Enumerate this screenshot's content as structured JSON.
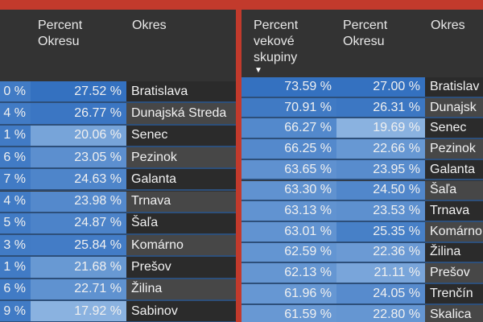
{
  "left_table": {
    "headers": {
      "col2": "Percent Okresu",
      "col3": "Okres"
    },
    "rows": [
      {
        "c1": "0 %",
        "c2": "27.52 %",
        "okres": "Bratislava"
      },
      {
        "c1": "4 %",
        "c2": "26.77 %",
        "okres": "Dunajská Streda"
      },
      {
        "c1": "1 %",
        "c2": "20.06 %",
        "okres": "Senec"
      },
      {
        "c1": "6 %",
        "c2": "23.05 %",
        "okres": "Pezinok"
      },
      {
        "c1": "7 %",
        "c2": "24.63 %",
        "okres": "Galanta"
      },
      {
        "c1": "4 %",
        "c2": "23.98 %",
        "okres": "Trnava"
      },
      {
        "c1": "5 %",
        "c2": "24.87 %",
        "okres": "Šaľa"
      },
      {
        "c1": "3 %",
        "c2": "25.84 %",
        "okres": "Komárno"
      },
      {
        "c1": "1 %",
        "c2": "21.68 %",
        "okres": "Prešov"
      },
      {
        "c1": "6 %",
        "c2": "22.71 %",
        "okres": "Žilina"
      },
      {
        "c1": "9 %",
        "c2": "17.92 %",
        "okres": "Sabinov"
      }
    ]
  },
  "right_table": {
    "headers": {
      "col1": "Percent vekové skupiny",
      "col2": "Percent Okresu",
      "col3": "Okres"
    },
    "sort_icon": "sort-descending-triangle",
    "rows": [
      {
        "c1": "73.59 %",
        "c2": "27.00 %",
        "okres": "Bratislav"
      },
      {
        "c1": "70.91 %",
        "c2": "26.31 %",
        "okres": "Dunajsk"
      },
      {
        "c1": "66.27 %",
        "c2": "19.69 %",
        "okres": "Senec"
      },
      {
        "c1": "66.25 %",
        "c2": "22.66 %",
        "okres": "Pezinok"
      },
      {
        "c1": "63.65 %",
        "c2": "23.95 %",
        "okres": "Galanta"
      },
      {
        "c1": "63.30 %",
        "c2": "24.50 %",
        "okres": "Šaľa"
      },
      {
        "c1": "63.13 %",
        "c2": "23.53 %",
        "okres": "Trnava"
      },
      {
        "c1": "63.01 %",
        "c2": "25.35 %",
        "okres": "Komárno"
      },
      {
        "c1": "62.59 %",
        "c2": "22.36 %",
        "okres": "Žilina"
      },
      {
        "c1": "62.13 %",
        "c2": "21.11 %",
        "okres": "Prešov"
      },
      {
        "c1": "61.96 %",
        "c2": "24.05 %",
        "okres": "Trenčín"
      },
      {
        "c1": "61.59 %",
        "c2": "22.80 %",
        "okres": "Skalica"
      }
    ]
  },
  "colors": {
    "frame": "#c23a2c",
    "panel": "#333333",
    "blue_dark": "#3471c0",
    "blue_light": "#8ab2e0",
    "name_dark": "#2b2b2b",
    "name_light": "#474747"
  }
}
